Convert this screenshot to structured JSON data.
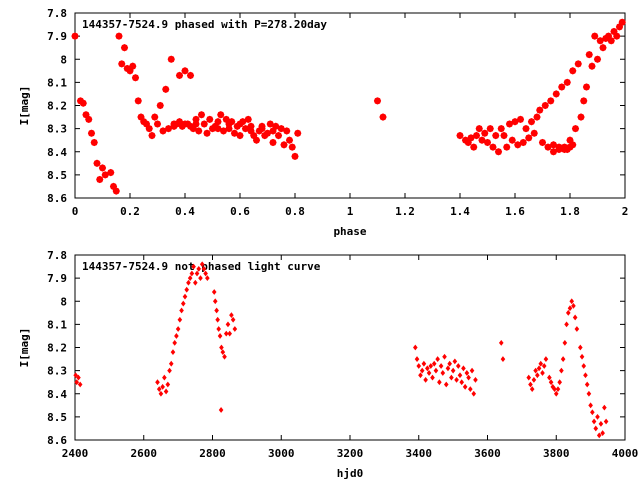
{
  "colors": {
    "points": "#ff0000",
    "axes": "#000000",
    "background": "#ffffff"
  },
  "chart_data": [
    {
      "type": "scatter",
      "title": "144357-7524.9 phased with P=278.20day",
      "xlabel": "phase",
      "ylabel": "I[mag]",
      "xlim": [
        0,
        2
      ],
      "ylim": [
        8.6,
        7.8
      ],
      "y_inverted": true,
      "grid": false,
      "x_ticks": [
        "0",
        "0.2",
        "0.4",
        "0.6",
        "0.8",
        "1",
        "1.2",
        "1.4",
        "1.6",
        "1.8",
        "2"
      ],
      "y_ticks": [
        "7.8",
        "7.9",
        "8",
        "8.1",
        "8.2",
        "8.3",
        "8.4",
        "8.5",
        "8.6"
      ],
      "marker": "star",
      "points": [
        [
          0.0,
          7.9
        ],
        [
          0.02,
          8.18
        ],
        [
          0.03,
          8.19
        ],
        [
          0.04,
          8.24
        ],
        [
          0.05,
          8.26
        ],
        [
          0.06,
          8.32
        ],
        [
          0.07,
          8.36
        ],
        [
          0.08,
          8.45
        ],
        [
          0.09,
          8.52
        ],
        [
          0.1,
          8.47
        ],
        [
          0.11,
          8.5
        ],
        [
          0.13,
          8.49
        ],
        [
          0.14,
          8.55
        ],
        [
          0.15,
          8.57
        ],
        [
          0.16,
          7.9
        ],
        [
          0.17,
          8.02
        ],
        [
          0.18,
          7.95
        ],
        [
          0.19,
          8.04
        ],
        [
          0.2,
          8.05
        ],
        [
          0.21,
          8.03
        ],
        [
          0.22,
          8.08
        ],
        [
          0.23,
          8.18
        ],
        [
          0.24,
          8.25
        ],
        [
          0.25,
          8.27
        ],
        [
          0.26,
          8.28
        ],
        [
          0.27,
          8.3
        ],
        [
          0.28,
          8.33
        ],
        [
          0.29,
          8.25
        ],
        [
          0.3,
          8.28
        ],
        [
          0.31,
          8.2
        ],
        [
          0.32,
          8.31
        ],
        [
          0.33,
          8.13
        ],
        [
          0.34,
          8.3
        ],
        [
          0.35,
          8.0
        ],
        [
          0.36,
          8.29
        ],
        [
          0.37,
          8.28
        ],
        [
          0.38,
          8.07
        ],
        [
          0.39,
          8.29
        ],
        [
          0.4,
          8.05
        ],
        [
          0.41,
          8.28
        ],
        [
          0.42,
          8.07
        ],
        [
          0.43,
          8.3
        ],
        [
          0.44,
          8.26
        ],
        [
          0.45,
          8.31
        ],
        [
          0.46,
          8.24
        ],
        [
          0.47,
          8.28
        ],
        [
          0.48,
          8.32
        ],
        [
          0.49,
          8.26
        ],
        [
          0.5,
          8.3
        ],
        [
          0.51,
          8.29
        ],
        [
          0.52,
          8.3
        ],
        [
          0.53,
          8.24
        ],
        [
          0.54,
          8.31
        ],
        [
          0.55,
          8.26
        ],
        [
          0.56,
          8.3
        ],
        [
          0.57,
          8.27
        ],
        [
          0.58,
          8.32
        ],
        [
          0.59,
          8.29
        ],
        [
          0.6,
          8.33
        ],
        [
          0.61,
          8.27
        ],
        [
          0.62,
          8.3
        ],
        [
          0.63,
          8.26
        ],
        [
          0.64,
          8.31
        ],
        [
          0.65,
          8.33
        ],
        [
          0.66,
          8.35
        ],
        [
          0.67,
          8.31
        ],
        [
          0.68,
          8.29
        ],
        [
          0.69,
          8.33
        ],
        [
          0.7,
          8.32
        ],
        [
          0.71,
          8.28
        ],
        [
          0.72,
          8.36
        ],
        [
          0.73,
          8.29
        ],
        [
          0.74,
          8.33
        ],
        [
          0.75,
          8.3
        ],
        [
          0.76,
          8.37
        ],
        [
          0.77,
          8.31
        ],
        [
          0.78,
          8.35
        ],
        [
          0.79,
          8.38
        ],
        [
          0.8,
          8.42
        ],
        [
          0.81,
          8.32
        ],
        [
          1.1,
          8.18
        ],
        [
          1.12,
          8.25
        ],
        [
          1.4,
          8.33
        ],
        [
          1.42,
          8.35
        ],
        [
          1.43,
          8.36
        ],
        [
          1.44,
          8.34
        ],
        [
          1.45,
          8.38
        ],
        [
          1.46,
          8.33
        ],
        [
          1.47,
          8.3
        ],
        [
          1.48,
          8.35
        ],
        [
          1.49,
          8.32
        ],
        [
          1.5,
          8.36
        ],
        [
          1.51,
          8.3
        ],
        [
          1.52,
          8.38
        ],
        [
          1.53,
          8.33
        ],
        [
          1.54,
          8.4
        ],
        [
          1.55,
          8.3
        ],
        [
          1.56,
          8.33
        ],
        [
          1.57,
          8.38
        ],
        [
          1.58,
          8.28
        ],
        [
          1.59,
          8.35
        ],
        [
          1.6,
          8.27
        ],
        [
          1.61,
          8.37
        ],
        [
          1.62,
          8.26
        ],
        [
          1.63,
          8.36
        ],
        [
          1.64,
          8.3
        ],
        [
          1.65,
          8.34
        ],
        [
          1.66,
          8.27
        ],
        [
          1.67,
          8.32
        ],
        [
          1.68,
          8.25
        ],
        [
          1.69,
          8.22
        ],
        [
          1.7,
          8.36
        ],
        [
          1.71,
          8.2
        ],
        [
          1.72,
          8.38
        ],
        [
          1.73,
          8.18
        ],
        [
          1.74,
          8.4
        ],
        [
          1.75,
          8.15
        ],
        [
          1.76,
          8.38
        ],
        [
          1.77,
          8.12
        ],
        [
          1.78,
          8.39
        ],
        [
          1.79,
          8.1
        ],
        [
          1.8,
          8.35
        ],
        [
          1.81,
          8.05
        ],
        [
          1.82,
          8.3
        ],
        [
          1.83,
          8.02
        ],
        [
          1.84,
          8.25
        ],
        [
          1.85,
          8.18
        ],
        [
          1.86,
          8.12
        ],
        [
          1.87,
          7.98
        ],
        [
          1.88,
          8.03
        ],
        [
          1.89,
          7.9
        ],
        [
          1.9,
          8.0
        ],
        [
          1.91,
          7.92
        ],
        [
          1.92,
          7.95
        ],
        [
          1.93,
          7.91
        ],
        [
          1.94,
          7.9
        ],
        [
          1.95,
          7.92
        ],
        [
          1.96,
          7.88
        ],
        [
          1.97,
          7.9
        ],
        [
          1.98,
          7.86
        ],
        [
          1.99,
          7.84
        ],
        [
          0.36,
          8.28
        ],
        [
          0.38,
          8.27
        ],
        [
          0.4,
          8.28
        ],
        [
          0.42,
          8.29
        ],
        [
          0.44,
          8.28
        ],
        [
          0.52,
          8.27
        ],
        [
          0.56,
          8.28
        ],
        [
          0.6,
          8.28
        ],
        [
          0.64,
          8.29
        ],
        [
          0.68,
          8.3
        ],
        [
          0.72,
          8.31
        ],
        [
          1.78,
          8.38
        ],
        [
          1.79,
          8.39
        ],
        [
          1.8,
          8.38
        ],
        [
          1.81,
          8.37
        ],
        [
          1.76,
          8.39
        ],
        [
          1.74,
          8.37
        ]
      ]
    },
    {
      "type": "scatter",
      "title": "144357-7524.9 not phased light curve",
      "xlabel": "hjd0",
      "ylabel": "I[mag]",
      "xlim": [
        2400,
        4000
      ],
      "ylim": [
        8.6,
        7.8
      ],
      "y_inverted": true,
      "grid": false,
      "x_ticks": [
        "2400",
        "2600",
        "2800",
        "3000",
        "3200",
        "3400",
        "3600",
        "3800",
        "4000"
      ],
      "y_ticks": [
        "7.8",
        "7.9",
        "8",
        "8.1",
        "8.2",
        "8.3",
        "8.4",
        "8.5",
        "8.6"
      ],
      "marker": "diamond",
      "points": [
        [
          2402,
          8.32
        ],
        [
          2405,
          8.35
        ],
        [
          2410,
          8.33
        ],
        [
          2415,
          8.36
        ],
        [
          2640,
          8.35
        ],
        [
          2645,
          8.38
        ],
        [
          2650,
          8.4
        ],
        [
          2655,
          8.37
        ],
        [
          2660,
          8.33
        ],
        [
          2665,
          8.39
        ],
        [
          2670,
          8.36
        ],
        [
          2675,
          8.3
        ],
        [
          2680,
          8.27
        ],
        [
          2685,
          8.22
        ],
        [
          2690,
          8.18
        ],
        [
          2695,
          8.15
        ],
        [
          2700,
          8.12
        ],
        [
          2705,
          8.08
        ],
        [
          2710,
          8.04
        ],
        [
          2715,
          8.01
        ],
        [
          2720,
          7.98
        ],
        [
          2725,
          7.95
        ],
        [
          2730,
          7.92
        ],
        [
          2735,
          7.9
        ],
        [
          2740,
          7.88
        ],
        [
          2745,
          7.85
        ],
        [
          2750,
          7.92
        ],
        [
          2755,
          7.88
        ],
        [
          2760,
          7.86
        ],
        [
          2765,
          7.9
        ],
        [
          2770,
          7.84
        ],
        [
          2775,
          7.86
        ],
        [
          2780,
          7.88
        ],
        [
          2785,
          7.9
        ],
        [
          2805,
          7.96
        ],
        [
          2808,
          8.0
        ],
        [
          2812,
          8.04
        ],
        [
          2815,
          8.08
        ],
        [
          2818,
          8.12
        ],
        [
          2822,
          8.15
        ],
        [
          2826,
          8.2
        ],
        [
          2830,
          8.22
        ],
        [
          2835,
          8.24
        ],
        [
          2840,
          8.14
        ],
        [
          2845,
          8.1
        ],
        [
          2850,
          8.14
        ],
        [
          2855,
          8.06
        ],
        [
          2860,
          8.08
        ],
        [
          2865,
          8.12
        ],
        [
          2825,
          8.47
        ],
        [
          3390,
          8.2
        ],
        [
          3395,
          8.25
        ],
        [
          3400,
          8.28
        ],
        [
          3405,
          8.32
        ],
        [
          3410,
          8.3
        ],
        [
          3415,
          8.27
        ],
        [
          3420,
          8.34
        ],
        [
          3425,
          8.29
        ],
        [
          3430,
          8.31
        ],
        [
          3435,
          8.28
        ],
        [
          3440,
          8.33
        ],
        [
          3445,
          8.27
        ],
        [
          3450,
          8.3
        ],
        [
          3455,
          8.25
        ],
        [
          3460,
          8.35
        ],
        [
          3465,
          8.28
        ],
        [
          3470,
          8.31
        ],
        [
          3475,
          8.24
        ],
        [
          3480,
          8.36
        ],
        [
          3485,
          8.29
        ],
        [
          3490,
          8.27
        ],
        [
          3495,
          8.33
        ],
        [
          3500,
          8.3
        ],
        [
          3505,
          8.26
        ],
        [
          3510,
          8.34
        ],
        [
          3515,
          8.28
        ],
        [
          3520,
          8.32
        ],
        [
          3525,
          8.35
        ],
        [
          3530,
          8.29
        ],
        [
          3535,
          8.37
        ],
        [
          3540,
          8.31
        ],
        [
          3545,
          8.33
        ],
        [
          3550,
          8.38
        ],
        [
          3555,
          8.3
        ],
        [
          3560,
          8.4
        ],
        [
          3565,
          8.34
        ],
        [
          3640,
          8.18
        ],
        [
          3645,
          8.25
        ],
        [
          3720,
          8.33
        ],
        [
          3725,
          8.36
        ],
        [
          3730,
          8.38
        ],
        [
          3735,
          8.34
        ],
        [
          3740,
          8.3
        ],
        [
          3745,
          8.32
        ],
        [
          3750,
          8.29
        ],
        [
          3755,
          8.27
        ],
        [
          3760,
          8.31
        ],
        [
          3765,
          8.28
        ],
        [
          3770,
          8.25
        ],
        [
          3780,
          8.33
        ],
        [
          3785,
          8.35
        ],
        [
          3790,
          8.37
        ],
        [
          3795,
          8.38
        ],
        [
          3800,
          8.4
        ],
        [
          3805,
          8.38
        ],
        [
          3810,
          8.35
        ],
        [
          3815,
          8.3
        ],
        [
          3820,
          8.25
        ],
        [
          3825,
          8.18
        ],
        [
          3830,
          8.1
        ],
        [
          3835,
          8.05
        ],
        [
          3840,
          8.03
        ],
        [
          3845,
          8.0
        ],
        [
          3850,
          8.02
        ],
        [
          3855,
          8.07
        ],
        [
          3860,
          8.12
        ],
        [
          3870,
          8.2
        ],
        [
          3875,
          8.24
        ],
        [
          3880,
          8.28
        ],
        [
          3885,
          8.32
        ],
        [
          3890,
          8.36
        ],
        [
          3895,
          8.4
        ],
        [
          3900,
          8.45
        ],
        [
          3905,
          8.48
        ],
        [
          3910,
          8.52
        ],
        [
          3915,
          8.55
        ],
        [
          3920,
          8.5
        ],
        [
          3925,
          8.58
        ],
        [
          3930,
          8.53
        ],
        [
          3935,
          8.57
        ],
        [
          3940,
          8.46
        ],
        [
          3945,
          8.52
        ]
      ]
    }
  ]
}
